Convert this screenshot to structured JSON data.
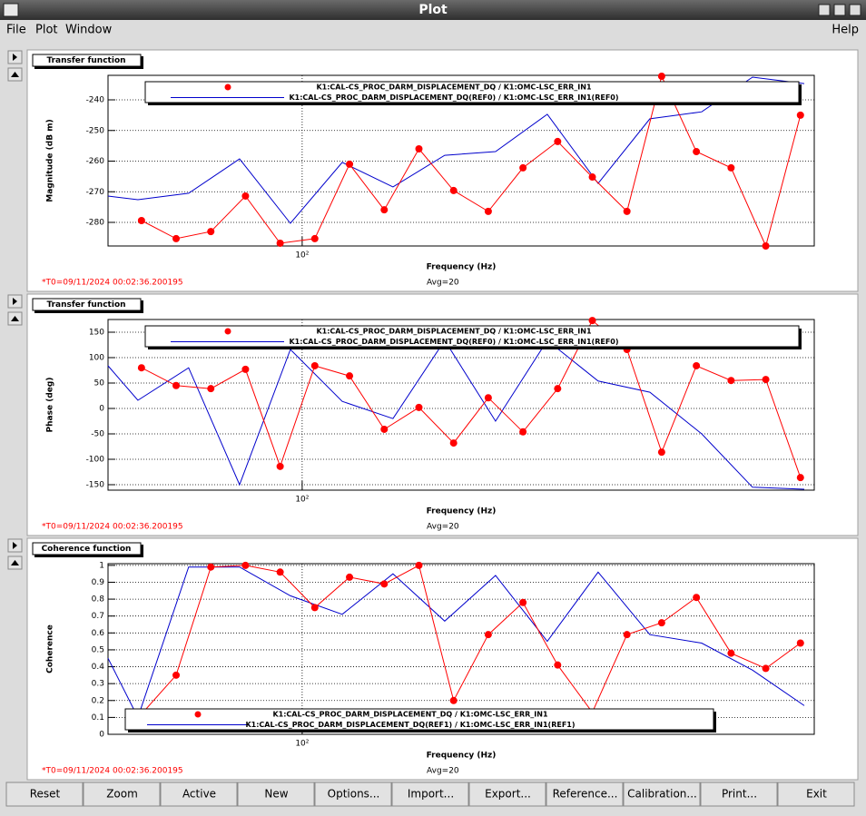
{
  "window": {
    "title": "Plot"
  },
  "menu": [
    "File",
    "Plot",
    "Window"
  ],
  "help": "Help",
  "chart_data": [
    {
      "type": "line",
      "title": "Transfer function",
      "xlabel": "Frequency (Hz)",
      "ylabel": "Magnitude (dB m)",
      "timestamp": "*T0=09/11/2024 00:02:36.200195",
      "average": "Avg=20",
      "xscale": "log",
      "xlim": [
        24.1,
        4266
      ],
      "xticks": [
        {
          "value": 100,
          "label": "10²"
        }
      ],
      "ylim": [
        -287.7,
        -232.0
      ],
      "yticks": [
        -280,
        -270,
        -260,
        -250,
        -240
      ],
      "grid": true,
      "legend": "top-right",
      "series": [
        {
          "name": "K1:CAL-CS_PROC_DARM_DISPLACEMENT_DQ / K1:OMC-LSC_ERR_IN1",
          "color": "#ff0000",
          "marker": true,
          "x": [
            30.8,
            39.7,
            51.2,
            66.0,
            85.1,
            109.7,
            141.5,
            182.5,
            235.3,
            303.4,
            391.2,
            504.5,
            650.5,
            838.8,
            1081,
            1394,
            1798,
            2319,
            2990,
            3855
          ],
          "values": [
            -279.4,
            -285.3,
            -283.0,
            -271.4,
            -286.8,
            -285.3,
            -261.0,
            -275.9,
            -256.0,
            -269.6,
            -276.4,
            -262.2,
            -253.6,
            -265.2,
            -276.4,
            -232.3,
            -256.9,
            -262.2,
            -287.7,
            -245.0
          ]
        },
        {
          "name": "K1:CAL-CS_PROC_DARM_DISPLACEMENT_DQ(REF0) / K1:OMC-LSC_ERR_IN1(REF0)",
          "color": "#0000cc",
          "marker": false,
          "x": [
            24.1,
            30.0,
            43.5,
            63.2,
            91.7,
            134.1,
            194.5,
            284.3,
            412.6,
            603.0,
            875.3,
            1279,
            1869,
            2713,
            3966
          ],
          "values": [
            -271.4,
            -272.6,
            -270.5,
            -259.3,
            -280.3,
            -260.4,
            -268.4,
            -258.1,
            -256.9,
            -244.7,
            -267.3,
            -246.2,
            -243.9,
            -232.6,
            -234.7
          ]
        }
      ]
    },
    {
      "type": "line",
      "title": "Transfer function",
      "xlabel": "Frequency (Hz)",
      "ylabel": "Phase (deg)",
      "timestamp": "*T0=09/11/2024 00:02:36.200195",
      "average": "Avg=20",
      "xscale": "log",
      "xlim": [
        24.1,
        4266
      ],
      "xticks": [
        {
          "value": 100,
          "label": "10²"
        }
      ],
      "ylim": [
        -160.7,
        175
      ],
      "yticks": [
        -150,
        -100,
        -50,
        0,
        50,
        100,
        150
      ],
      "grid": true,
      "legend": "top-right",
      "series": [
        {
          "name": "K1:CAL-CS_PROC_DARM_DISPLACEMENT_DQ / K1:OMC-LSC_ERR_IN1",
          "color": "#ff0000",
          "marker": true,
          "x": [
            30.8,
            39.7,
            51.2,
            66.0,
            85.1,
            109.7,
            141.5,
            182.5,
            235.3,
            303.4,
            391.2,
            504.5,
            650.5,
            838.8,
            1081,
            1394,
            1798,
            2319,
            2990,
            3855
          ],
          "values": [
            80,
            45,
            39,
            77,
            -114,
            84,
            64,
            -41,
            2,
            -68,
            21,
            -46,
            39,
            173,
            116,
            -86,
            84,
            55,
            57,
            -136
          ]
        },
        {
          "name": "K1:CAL-CS_PROC_DARM_DISPLACEMENT_DQ(REF0) / K1:OMC-LSC_ERR_IN1(REF0)",
          "color": "#0000cc",
          "marker": false,
          "x": [
            24.1,
            30.0,
            43.5,
            63.2,
            91.7,
            134.1,
            194.5,
            284.3,
            412.6,
            603.0,
            875.3,
            1279,
            1869,
            2713,
            3966
          ],
          "values": [
            84,
            16,
            80,
            -150,
            116,
            14,
            -20,
            134,
            -25,
            134,
            54,
            32,
            -50,
            -155,
            -159
          ]
        }
      ]
    },
    {
      "type": "line",
      "title": "Coherence function",
      "xlabel": "Frequency (Hz)",
      "ylabel": "Coherence",
      "timestamp": "*T0=09/11/2024 00:02:36.200195",
      "average": "Avg=20",
      "xscale": "log",
      "xlim": [
        24.1,
        4266
      ],
      "xticks": [
        {
          "value": 100,
          "label": "10²"
        }
      ],
      "ylim": [
        0,
        1.01
      ],
      "yticks": [
        0,
        0.1,
        0.2,
        0.3,
        0.4,
        0.5,
        0.6,
        0.7,
        0.8,
        0.9,
        1
      ],
      "grid": true,
      "legend": "bottom-left",
      "series": [
        {
          "name": "K1:CAL-CS_PROC_DARM_DISPLACEMENT_DQ / K1:OMC-LSC_ERR_IN1",
          "color": "#ff0000",
          "marker": true,
          "x": [
            30.8,
            39.7,
            51.2,
            66.0,
            85.1,
            109.7,
            141.5,
            182.5,
            235.3,
            303.4,
            391.2,
            504.5,
            650.5,
            838.8,
            1081,
            1394,
            1798,
            2319,
            2990,
            3855
          ],
          "values": [
            0.12,
            0.35,
            0.99,
            1.0,
            0.96,
            0.75,
            0.93,
            0.89,
            1.0,
            0.2,
            0.59,
            0.78,
            0.41,
            0.13,
            0.59,
            0.66,
            0.81,
            0.48,
            0.39,
            0.54
          ]
        },
        {
          "name": "K1:CAL-CS_PROC_DARM_DISPLACEMENT_DQ(REF1) / K1:OMC-LSC_ERR_IN1(REF1)",
          "color": "#0000cc",
          "marker": false,
          "x": [
            24.1,
            30.0,
            43.5,
            63.2,
            91.7,
            134.1,
            194.5,
            284.3,
            412.6,
            603.0,
            875.3,
            1279,
            1869,
            2713,
            3966
          ],
          "values": [
            0.45,
            0.1,
            0.99,
            0.99,
            0.82,
            0.71,
            0.95,
            0.67,
            0.94,
            0.55,
            0.96,
            0.59,
            0.54,
            0.38,
            0.17
          ]
        }
      ]
    }
  ],
  "buttons": [
    "Reset",
    "Zoom",
    "Active",
    "New",
    "Options...",
    "Import...",
    "Export...",
    "Reference...",
    "Calibration...",
    "Print...",
    "Exit"
  ]
}
